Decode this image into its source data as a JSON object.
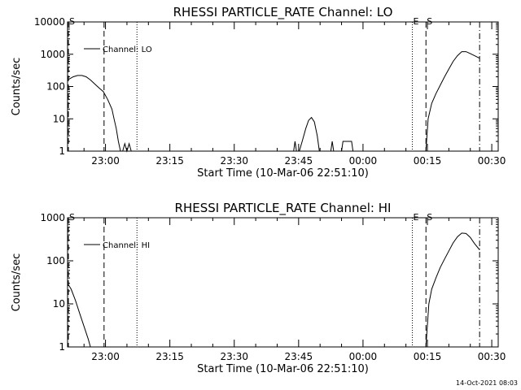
{
  "footer_timestamp": "14-Oct-2021 08:03",
  "chart_data": [
    {
      "type": "line",
      "title": "RHESSI PARTICLE_RATE Channel: LO",
      "xlabel": "Start Time (10-Mar-06 22:51:10)",
      "ylabel": "Counts/sec",
      "yscale": "log",
      "ylim": [
        1,
        10000
      ],
      "yticks": [
        1,
        10,
        100,
        1000,
        10000
      ],
      "ytick_labels": [
        "1",
        "10",
        "100",
        "1000",
        "10000"
      ],
      "xlim": [
        "22:51:10",
        "00:31:30"
      ],
      "xticks": [
        "23:00",
        "23:15",
        "23:30",
        "23:45",
        "00:00",
        "00:15",
        "00:30"
      ],
      "grid": false,
      "legend": {
        "position": "upper-left",
        "entries": [
          "Channel: LO"
        ]
      },
      "markers": [
        {
          "time": "22:51:10",
          "style": "dashed",
          "label": "S"
        },
        {
          "time": "22:59:40",
          "style": "dashed",
          "label": ""
        },
        {
          "time": "23:07:20",
          "style": "dotted",
          "label": ""
        },
        {
          "time": "00:11:30",
          "style": "dotted",
          "label": "E"
        },
        {
          "time": "00:14:40",
          "style": "dashed",
          "label": "S"
        },
        {
          "time": "00:27:10",
          "style": "dashdot",
          "label": ""
        }
      ],
      "series": [
        {
          "name": "Channel: LO",
          "segments": [
            [
              [
                "22:51:10",
                160
              ],
              [
                "22:52:30",
                200
              ],
              [
                "22:53:30",
                220
              ],
              [
                "22:54:30",
                220
              ],
              [
                "22:55:30",
                200
              ],
              [
                "22:56:30",
                160
              ],
              [
                "22:57:30",
                120
              ],
              [
                "22:58:30",
                90
              ],
              [
                "22:59:30",
                70
              ],
              [
                "23:00:30",
                40
              ],
              [
                "23:01:30",
                20
              ],
              [
                "23:02:00",
                10
              ],
              [
                "23:02:30",
                5
              ],
              [
                "23:03:00",
                2
              ],
              [
                "23:03:30",
                1
              ]
            ],
            [
              [
                "23:04:00",
                1
              ],
              [
                "23:04:30",
                1.7
              ],
              [
                "23:05:00",
                1
              ],
              [
                "23:05:30",
                1.7
              ],
              [
                "23:06:00",
                1
              ]
            ],
            [
              [
                "23:43:50",
                1
              ],
              [
                "23:44:10",
                2
              ],
              [
                "23:44:30",
                1
              ]
            ],
            [
              [
                "23:45:10",
                1
              ],
              [
                "23:45:50",
                2
              ],
              [
                "23:46:40",
                5
              ],
              [
                "23:47:20",
                9
              ],
              [
                "23:48:00",
                11
              ],
              [
                "23:48:40",
                8
              ],
              [
                "23:49:20",
                3
              ],
              [
                "23:49:50",
                1
              ]
            ],
            [
              [
                "23:52:30",
                1
              ],
              [
                "23:52:50",
                2
              ],
              [
                "23:53:10",
                1
              ]
            ],
            [
              [
                "23:55:00",
                1
              ],
              [
                "23:55:20",
                2
              ],
              [
                "23:57:20",
                2
              ],
              [
                "23:57:40",
                1
              ]
            ],
            [
              [
                "00:14:40",
                1
              ],
              [
                "00:15:10",
                10
              ],
              [
                "00:16:00",
                30
              ],
              [
                "00:17:00",
                60
              ],
              [
                "00:18:00",
                110
              ],
              [
                "00:19:00",
                200
              ],
              [
                "00:20:00",
                350
              ],
              [
                "00:21:00",
                600
              ],
              [
                "00:22:00",
                900
              ],
              [
                "00:23:00",
                1200
              ],
              [
                "00:24:00",
                1200
              ],
              [
                "00:25:00",
                1050
              ],
              [
                "00:26:00",
                900
              ],
              [
                "00:27:10",
                750
              ]
            ]
          ]
        }
      ]
    },
    {
      "type": "line",
      "title": "RHESSI PARTICLE_RATE Channel: HI",
      "xlabel": "Start Time (10-Mar-06 22:51:10)",
      "ylabel": "Counts/sec",
      "yscale": "log",
      "ylim": [
        1,
        1000
      ],
      "yticks": [
        1,
        10,
        100,
        1000
      ],
      "ytick_labels": [
        "1",
        "10",
        "100",
        "1000"
      ],
      "xlim": [
        "22:51:10",
        "00:31:30"
      ],
      "xticks": [
        "23:00",
        "23:15",
        "23:30",
        "23:45",
        "00:00",
        "00:15",
        "00:30"
      ],
      "grid": false,
      "legend": {
        "position": "upper-left",
        "entries": [
          "Channel: HI"
        ]
      },
      "markers": [
        {
          "time": "22:51:10",
          "style": "dashed",
          "label": "S"
        },
        {
          "time": "22:59:40",
          "style": "dashed",
          "label": ""
        },
        {
          "time": "23:07:20",
          "style": "dotted",
          "label": ""
        },
        {
          "time": "00:11:30",
          "style": "dotted",
          "label": "E"
        },
        {
          "time": "00:14:40",
          "style": "dashed",
          "label": "S"
        },
        {
          "time": "00:27:10",
          "style": "dashdot",
          "label": ""
        }
      ],
      "series": [
        {
          "name": "Channel: HI",
          "segments": [
            [
              [
                "22:51:10",
                30
              ],
              [
                "22:52:00",
                22
              ],
              [
                "22:53:00",
                12
              ],
              [
                "22:54:00",
                6
              ],
              [
                "22:55:00",
                3
              ],
              [
                "22:56:00",
                1.5
              ],
              [
                "22:56:30",
                1
              ]
            ],
            [
              [
                "00:14:40",
                1
              ],
              [
                "00:15:20",
                10
              ],
              [
                "00:16:00",
                22
              ],
              [
                "00:17:00",
                40
              ],
              [
                "00:18:00",
                70
              ],
              [
                "00:19:00",
                110
              ],
              [
                "00:20:00",
                170
              ],
              [
                "00:21:00",
                260
              ],
              [
                "00:22:00",
                360
              ],
              [
                "00:23:00",
                440
              ],
              [
                "00:24:00",
                430
              ],
              [
                "00:25:00",
                350
              ],
              [
                "00:26:00",
                250
              ],
              [
                "00:27:10",
                180
              ]
            ]
          ]
        }
      ]
    }
  ]
}
